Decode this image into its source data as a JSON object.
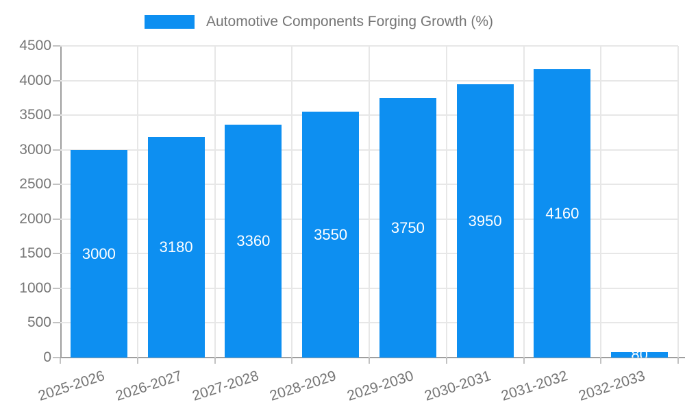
{
  "chart_data": {
    "type": "bar",
    "title": "Automotive Components Forging Growth (%)",
    "categories": [
      "2025-2026",
      "2026-2027",
      "2027-2028",
      "2028-2029",
      "2029-2030",
      "2030-2031",
      "2031-2032",
      "2032-2033"
    ],
    "values": [
      3000,
      3180,
      3360,
      3550,
      3750,
      3950,
      4160,
      80
    ],
    "value_labels": [
      "3000",
      "3180",
      "3360",
      "3550",
      "3750",
      "3950",
      "4160",
      "80"
    ],
    "xlabel": "",
    "ylabel": "",
    "ylim": [
      0,
      4500
    ],
    "yticks": [
      0,
      500,
      1000,
      1500,
      2000,
      2500,
      3000,
      3500,
      4000,
      4500
    ],
    "legend_position": "top",
    "grid": true,
    "value_label_position": "inside-center",
    "colors": {
      "bar": "#0d8ff1",
      "axis_line": "#9e9e9e",
      "gridline": "#e7e7e7",
      "tick": "#c2c2c2",
      "text": "#757575",
      "value_label": "#ffffff",
      "background": "#ffffff"
    }
  }
}
